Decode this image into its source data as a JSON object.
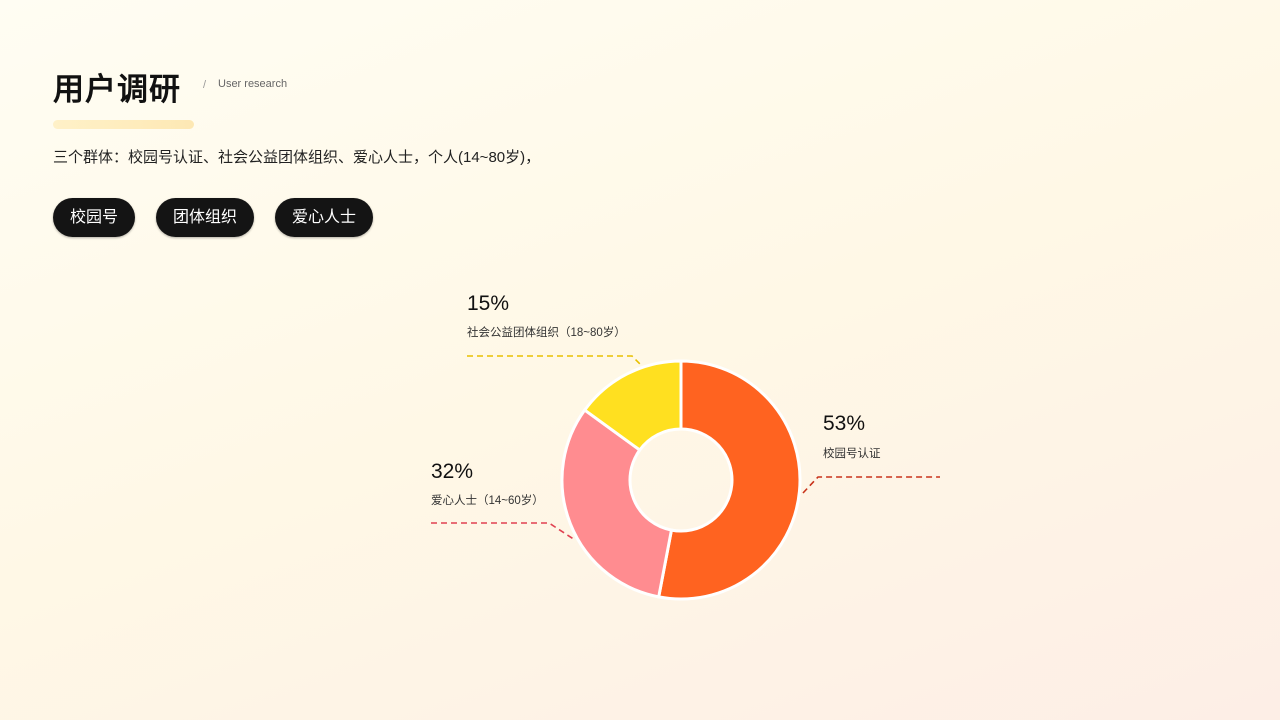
{
  "header": {
    "title": "用户调研",
    "separator": "/",
    "subtitle": "User research"
  },
  "description": "三个群体：校园号认证、社会公益团体组织、爱心人士，个人(14~80岁)，",
  "tags": [
    {
      "label": "校园号"
    },
    {
      "label": "团体组织"
    },
    {
      "label": "爱心人士"
    }
  ],
  "chart_data": {
    "type": "pie",
    "variant": "donut",
    "categories": [
      "校园号认证",
      "爱心人士（14~60岁）",
      "社会公益团体组织（18~80岁）"
    ],
    "values": [
      53,
      32,
      15
    ],
    "labels": [
      "53%",
      "32%",
      "15%"
    ],
    "colors": [
      "#ff6320",
      "#ff8c90",
      "#ffe020"
    ],
    "leader_colors": [
      "#c8321a",
      "#e04050",
      "#e8c000"
    ],
    "start": "top",
    "direction": "clockwise"
  }
}
